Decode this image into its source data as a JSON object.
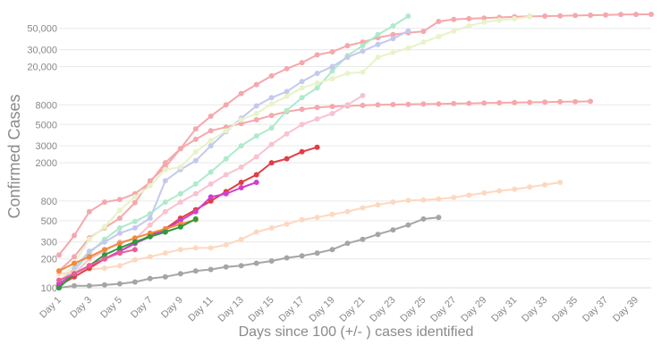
{
  "chart_data": {
    "type": "line",
    "title": "",
    "xlabel": "Days since 100 (+/- ) cases identified",
    "ylabel": "Confirmed Cases",
    "yscale": "log",
    "xlim": [
      1,
      40
    ],
    "ylim": [
      100,
      70000
    ],
    "grid": "horizontal",
    "legend": "none",
    "x_ticks": [
      1,
      3,
      5,
      7,
      9,
      11,
      13,
      15,
      17,
      19,
      21,
      23,
      25,
      27,
      29,
      31,
      33,
      35,
      37,
      39
    ],
    "x_tick_labels": [
      "Day 1",
      "Day 3",
      "Day 5",
      "Day 7",
      "Day 9",
      "Day 11",
      "Day 13",
      "Day 15",
      "Day 17",
      "Day 19",
      "Day 21",
      "Day 23",
      "Day 25",
      "Day 27",
      "Day 29",
      "Day 31",
      "Day 33",
      "Day 35",
      "Day 37",
      "Day 39"
    ],
    "y_ticks": [
      100,
      200,
      300,
      500,
      800,
      2000,
      3000,
      5000,
      8000,
      20000,
      30000,
      50000
    ],
    "y_tick_labels": [
      "100",
      "200",
      "300",
      "500",
      "800",
      "2000",
      "3000",
      "5000",
      "8000",
      "20,000",
      "30,000",
      "50,000"
    ],
    "series": [
      {
        "color": "#f5a8ac",
        "x": [
          1,
          2,
          3,
          4,
          5,
          6,
          7,
          8,
          9,
          10,
          11,
          12,
          13,
          14,
          15,
          16,
          17,
          18,
          19,
          20,
          21,
          22,
          23,
          24,
          25,
          26,
          27,
          28,
          29,
          30,
          31,
          32,
          33,
          34,
          35,
          36,
          37,
          38,
          39,
          40
        ],
        "values": [
          220,
          350,
          620,
          780,
          830,
          950,
          1250,
          2000,
          2800,
          4500,
          6100,
          8000,
          10500,
          13000,
          16000,
          19000,
          22000,
          26500,
          28500,
          33000,
          36000,
          40000,
          43000,
          45000,
          46500,
          59000,
          62000,
          63000,
          64000,
          65000,
          66000,
          66500,
          67000,
          67500,
          68000,
          68500,
          69000,
          69500,
          69800,
          70000
        ]
      },
      {
        "color": "#f5a8ac",
        "x": [
          1,
          2,
          3,
          4,
          5,
          6,
          7,
          8,
          9,
          10,
          11,
          12,
          13,
          14,
          15,
          16,
          17,
          18,
          19,
          20,
          21,
          22,
          23,
          24,
          25,
          26,
          27,
          28,
          29,
          30,
          31,
          32,
          33,
          34,
          35,
          36
        ],
        "values": [
          150,
          210,
          330,
          420,
          530,
          770,
          1300,
          1800,
          2800,
          3500,
          4300,
          4700,
          5100,
          5600,
          6200,
          6800,
          7200,
          7500,
          7700,
          7800,
          7900,
          8000,
          8050,
          8100,
          8150,
          8200,
          8250,
          8300,
          8350,
          8400,
          8450,
          8500,
          8550,
          8600,
          8650,
          8700
        ]
      },
      {
        "color": "#aeeacb",
        "x": [
          1,
          2,
          3,
          4,
          5,
          6,
          7,
          8,
          9,
          10,
          11,
          12,
          13,
          14,
          15,
          16,
          17,
          18,
          19,
          20,
          21,
          22,
          23,
          24
        ],
        "values": [
          105,
          150,
          230,
          320,
          420,
          490,
          590,
          780,
          950,
          1200,
          1600,
          2200,
          3000,
          3800,
          4600,
          7000,
          9500,
          12000,
          18000,
          26000,
          33000,
          43000,
          53000,
          67000
        ]
      },
      {
        "color": "#c5c8ee",
        "x": [
          1,
          2,
          3,
          4,
          5,
          6,
          7,
          8,
          9,
          10,
          11,
          12,
          13,
          14,
          15,
          16,
          17,
          18,
          19,
          20,
          21,
          22,
          23,
          24
        ],
        "values": [
          110,
          160,
          240,
          300,
          370,
          420,
          530,
          1300,
          1700,
          2100,
          3000,
          4200,
          5800,
          7800,
          9500,
          11000,
          14000,
          17000,
          20000,
          25000,
          29000,
          34000,
          39000,
          47000
        ]
      },
      {
        "color": "#e7f3c8",
        "x": [
          1,
          2,
          3,
          4,
          5,
          6,
          7,
          8,
          9,
          10,
          11,
          12,
          13,
          14,
          15,
          16,
          17,
          18,
          19,
          20,
          21,
          22,
          23,
          24,
          25,
          26,
          27,
          28,
          29,
          30,
          31,
          32
        ],
        "values": [
          115,
          180,
          320,
          430,
          640,
          880,
          1150,
          1700,
          1800,
          2600,
          3400,
          4300,
          5600,
          6500,
          8200,
          9800,
          12000,
          13500,
          15000,
          17000,
          17500,
          25000,
          28000,
          31000,
          36000,
          41000,
          47000,
          53000,
          58000,
          61000,
          63000,
          66000
        ]
      },
      {
        "color": "#f8c2d0",
        "x": [
          1,
          2,
          3,
          4,
          5,
          6,
          7,
          8,
          9,
          10,
          11,
          12,
          13,
          14,
          15,
          16,
          17,
          18,
          19,
          20,
          21
        ],
        "values": [
          105,
          140,
          200,
          240,
          300,
          320,
          450,
          620,
          780,
          950,
          1200,
          1500,
          1800,
          2300,
          3100,
          4000,
          5000,
          5700,
          6500,
          8000,
          10000
        ]
      },
      {
        "color": "#fdd8c0",
        "x": [
          1,
          2,
          3,
          4,
          5,
          6,
          7,
          8,
          9,
          10,
          11,
          12,
          13,
          14,
          15,
          16,
          17,
          18,
          19,
          20,
          21,
          22,
          23,
          24,
          25,
          26,
          27,
          28,
          29,
          30,
          31,
          32,
          33,
          34
        ],
        "values": [
          140,
          145,
          155,
          160,
          170,
          195,
          210,
          230,
          250,
          260,
          260,
          280,
          320,
          380,
          420,
          460,
          510,
          540,
          580,
          620,
          680,
          730,
          780,
          810,
          820,
          840,
          870,
          920,
          970,
          1020,
          1060,
          1120,
          1180,
          1250
        ]
      },
      {
        "color": "#a5a5a5",
        "x": [
          1,
          2,
          3,
          4,
          5,
          6,
          7,
          8,
          9,
          10,
          11,
          12,
          13,
          14,
          15,
          16,
          17,
          18,
          19,
          20,
          21,
          22,
          23,
          24,
          25,
          26
        ],
        "values": [
          100,
          105,
          105,
          107,
          110,
          115,
          125,
          130,
          140,
          150,
          155,
          165,
          170,
          180,
          190,
          205,
          215,
          230,
          250,
          290,
          320,
          360,
          400,
          450,
          520,
          540
        ]
      },
      {
        "color": "#e23d43",
        "x": [
          1,
          2,
          3,
          4,
          5,
          6,
          7,
          8,
          9,
          10,
          11,
          12,
          13,
          14,
          15,
          16,
          17,
          18
        ],
        "values": [
          105,
          130,
          160,
          200,
          240,
          290,
          350,
          410,
          530,
          650,
          800,
          1000,
          1250,
          1500,
          2000,
          2200,
          2600,
          2900
        ]
      },
      {
        "color": "#d03fcf",
        "x": [
          1,
          2,
          3,
          4,
          5,
          6,
          7,
          8,
          9,
          10,
          11,
          12,
          13,
          14
        ],
        "values": [
          110,
          140,
          170,
          200,
          240,
          290,
          340,
          400,
          500,
          620,
          880,
          950,
          1100,
          1250
        ]
      },
      {
        "color": "#f08a3c",
        "x": [
          1,
          2,
          3,
          4,
          5,
          6,
          7,
          8,
          9,
          10
        ],
        "values": [
          150,
          180,
          210,
          250,
          290,
          330,
          370,
          410,
          460,
          510
        ]
      },
      {
        "color": "#2e9a3a",
        "x": [
          1,
          2,
          3,
          4,
          5,
          6,
          7,
          8,
          9,
          10
        ],
        "values": [
          100,
          140,
          170,
          220,
          260,
          300,
          340,
          380,
          430,
          520
        ]
      },
      {
        "color": "#ea5d9b",
        "x": [
          1,
          2,
          3,
          4,
          5,
          6
        ],
        "values": [
          120,
          140,
          170,
          200,
          230,
          250
        ]
      }
    ]
  }
}
